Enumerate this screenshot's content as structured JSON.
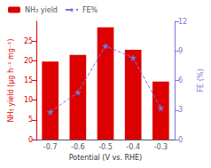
{
  "chart_data": {
    "type": "bar",
    "categories": [
      "-0.7",
      "-0.6",
      "-0.5",
      "-0.4",
      "-0.3"
    ],
    "series": [
      {
        "name": "NH₃ yield",
        "type": "bar",
        "color": "#dd0000",
        "values": [
          19.8,
          21.5,
          28.5,
          22.8,
          14.7
        ]
      },
      {
        "name": "FE%",
        "type": "line",
        "color": "#7777dd",
        "marker": "star",
        "line_style": "dashed",
        "axis": "y2",
        "values": [
          2.8,
          4.8,
          9.5,
          8.3,
          3.2
        ]
      }
    ],
    "xlabel": "Potential (V vs. RHE)",
    "ylabel": "NH₃ yield (μg h⁻¹ mg⁻¹)",
    "y2label": "FE (%)",
    "ylim": [
      0,
      30
    ],
    "yticks": [
      0,
      5,
      10,
      15,
      20,
      25
    ],
    "y2lim": [
      0,
      12
    ],
    "y2ticks": [
      0,
      3,
      6,
      9,
      12
    ],
    "legend": "upper left",
    "grid": false
  }
}
